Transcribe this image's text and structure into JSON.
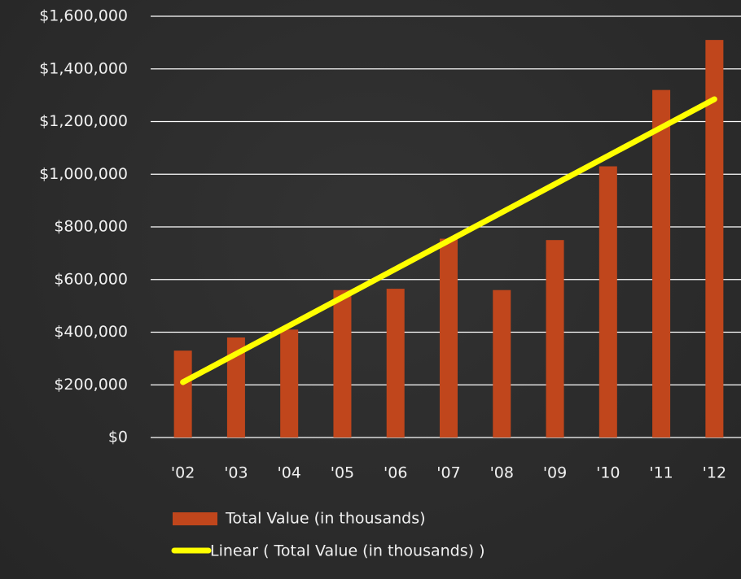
{
  "chart_data": {
    "type": "bar",
    "categories": [
      "'02",
      "'03",
      "'04",
      "'05",
      "'06",
      "'07",
      "'08",
      "'09",
      "'10",
      "'11",
      "'12"
    ],
    "series": [
      {
        "name": "Total Value (in thousands)",
        "color": "#c0461c",
        "values": [
          330000,
          380000,
          410000,
          560000,
          565000,
          755000,
          560000,
          750000,
          1030000,
          1320000,
          1510000
        ]
      }
    ],
    "trendline": {
      "name": "Linear ( Total Value (in thousands) )",
      "color": "#ffff00",
      "values": [
        210000,
        317500,
        425000,
        532500,
        640000,
        747500,
        855000,
        962500,
        1070000,
        1177500,
        1285000
      ]
    },
    "ylim": [
      0,
      1600000
    ],
    "yticks": [
      {
        "value": 0,
        "label": "$0"
      },
      {
        "value": 200000,
        "label": "$200,000"
      },
      {
        "value": 400000,
        "label": "$400,000"
      },
      {
        "value": 600000,
        "label": "$600,000"
      },
      {
        "value": 800000,
        "label": "$800,000"
      },
      {
        "value": 1000000,
        "label": "$1,000,000"
      },
      {
        "value": 1200000,
        "label": "$1,200,000"
      },
      {
        "value": 1400000,
        "label": "$1,400,000"
      },
      {
        "value": 1600000,
        "label": "$1,600,000"
      }
    ],
    "grid": true
  }
}
